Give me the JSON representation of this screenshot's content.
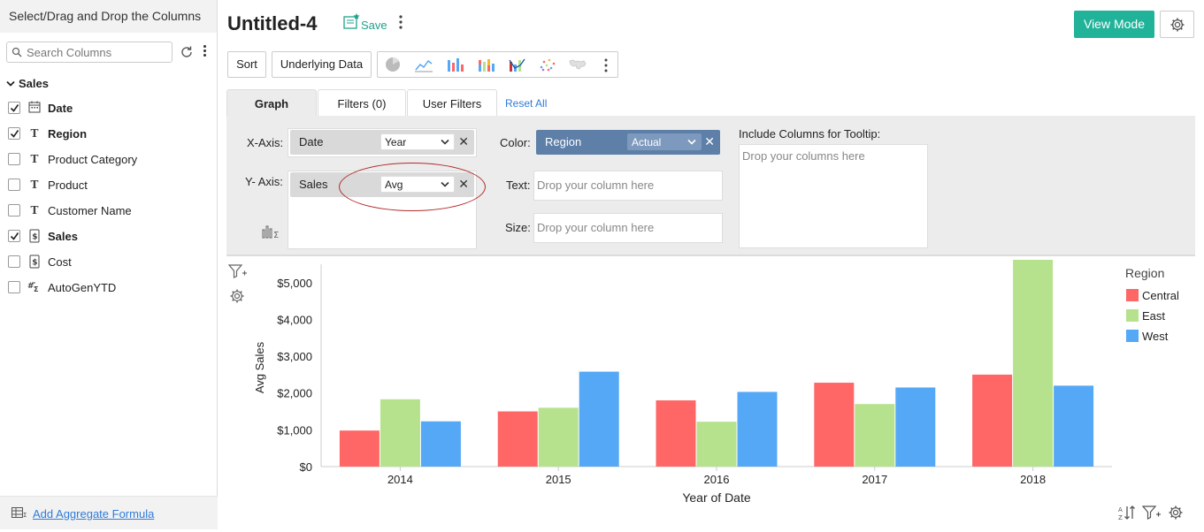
{
  "sidebar": {
    "header": "Select/Drag and Drop the Columns",
    "search_placeholder": "Search Columns",
    "group": "Sales",
    "columns": [
      {
        "label": "Date",
        "icon": "calendar-icon",
        "checked": true
      },
      {
        "label": "Region",
        "icon": "text-type-icon",
        "checked": true
      },
      {
        "label": "Product Category",
        "icon": "text-type-icon",
        "checked": false
      },
      {
        "label": "Product",
        "icon": "text-type-icon",
        "checked": false
      },
      {
        "label": "Customer Name",
        "icon": "text-type-icon",
        "checked": false
      },
      {
        "label": "Sales",
        "icon": "currency-icon",
        "checked": true
      },
      {
        "label": "Cost",
        "icon": "currency-icon",
        "checked": false
      },
      {
        "label": "AutoGenYTD",
        "icon": "formula-icon",
        "checked": false
      }
    ],
    "footer_link": "Add Aggregate Formula"
  },
  "header": {
    "title": "Untitled-4",
    "save_label": "Save",
    "view_mode_label": "View Mode"
  },
  "toolbar": {
    "sort_label": "Sort",
    "underlying_label": "Underlying Data",
    "chart_types": [
      "pie-chart-icon",
      "line-chart-icon",
      "bar-chart-icon",
      "stacked-bar-icon",
      "combo-chart-icon",
      "scatter-chart-icon",
      "map-chart-icon"
    ]
  },
  "tabs": {
    "graph": "Graph",
    "filters": "Filters (0)",
    "user_filters": "User Filters",
    "reset_all": "Reset All"
  },
  "config": {
    "x_axis_label": "X-Axis:",
    "x_column": "Date",
    "x_agg": "Year",
    "y_axis_label": "Y- Axis:",
    "y_column": "Sales",
    "y_agg": "Avg",
    "color_label": "Color:",
    "color_column": "Region",
    "color_agg": "Actual",
    "text_label": "Text:",
    "text_placeholder": "Drop your column here",
    "size_label": "Size:",
    "size_placeholder": "Drop your column here",
    "tooltip_label": "Include Columns for Tooltip:",
    "tooltip_placeholder": "Drop your columns here"
  },
  "colors": {
    "accent": "#21b39a",
    "central": "#ff6666",
    "east": "#b6e28e",
    "west": "#55a8f5",
    "highlight": "#b22a2a"
  },
  "chart_data": {
    "type": "bar",
    "categories": [
      "2014",
      "2015",
      "2016",
      "2017",
      "2018"
    ],
    "series": [
      {
        "name": "Central",
        "values": [
          980,
          1500,
          1800,
          2280,
          2500
        ]
      },
      {
        "name": "East",
        "values": [
          1830,
          1600,
          1220,
          1700,
          5620
        ]
      },
      {
        "name": "West",
        "values": [
          1230,
          2580,
          2030,
          2150,
          2200
        ]
      }
    ],
    "xlabel": "Year of Date",
    "ylabel": "Avg Sales",
    "ylim": [
      0,
      5500
    ],
    "yticks": [
      "$0",
      "$1,000",
      "$2,000",
      "$3,000",
      "$4,000",
      "$5,000"
    ],
    "ytick_values": [
      0,
      1000,
      2000,
      3000,
      4000,
      5000
    ],
    "legend_title": "Region",
    "legend_position": "top-right",
    "grid": false
  }
}
